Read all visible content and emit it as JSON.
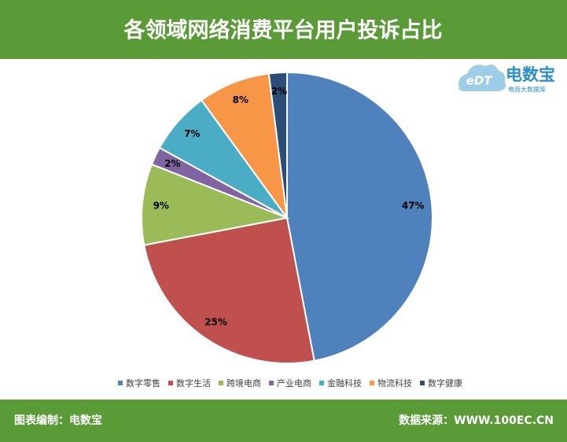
{
  "chart_data": {
    "type": "pie",
    "title": "各领域网络消费平台用户投诉占比",
    "categories": [
      "数字零售",
      "数字生活",
      "跨境电商",
      "产业电商",
      "金融科技",
      "物流科技",
      "数字健康"
    ],
    "values": [
      47,
      25,
      9,
      2,
      7,
      8,
      2
    ],
    "value_labels": [
      "47%",
      "25%",
      "9%",
      "2%",
      "7%",
      "8%",
      "2%"
    ],
    "colors": [
      "#4f81bd",
      "#c0504d",
      "#9bbb59",
      "#8064a2",
      "#4bacc6",
      "#f79646",
      "#2c4d75"
    ],
    "legend": "bottom"
  },
  "logo": {
    "mark": "eDT",
    "name": "电数宝",
    "tagline": "电商大数据库"
  },
  "footer": {
    "left": "图表编制：电数宝",
    "right": "数据来源：WWW.100EC.CN"
  }
}
